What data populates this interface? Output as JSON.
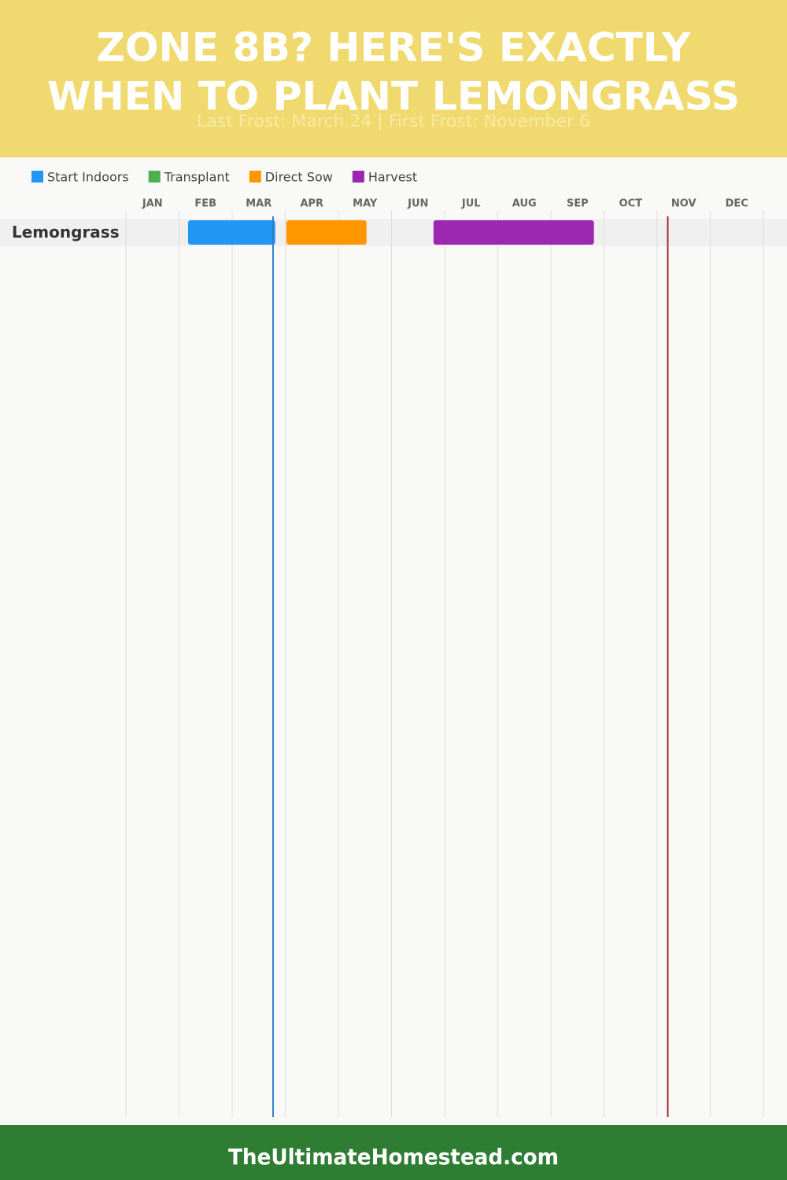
{
  "chart_data": {
    "type": "gantt",
    "title": [
      "ZONE 8B? HERE'S EXACTLY",
      "WHEN TO PLANT LEMONGRASS"
    ],
    "subtitle": "Last Frost: March 24 | First Frost: November 6",
    "categories": [
      "JAN",
      "FEB",
      "MAR",
      "APR",
      "MAY",
      "JUN",
      "JUL",
      "AUG",
      "SEP",
      "OCT",
      "NOV",
      "DEC"
    ],
    "rows": [
      "Lemongrass"
    ],
    "xlim": [
      0,
      12
    ],
    "series": [
      {
        "name": "Start Indoors",
        "color": "#2196f3",
        "start": [
          1.17
        ],
        "end": [
          2.81
        ]
      },
      {
        "name": "Transplant",
        "color": "#4caf50",
        "start": [
          null
        ],
        "end": [
          null
        ]
      },
      {
        "name": "Direct Sow",
        "color": "#ff9800",
        "start": [
          3.02
        ],
        "end": [
          4.53
        ]
      },
      {
        "name": "Harvest",
        "color": "#9c27b0",
        "start": [
          5.79
        ],
        "end": [
          8.81
        ]
      }
    ],
    "markers": [
      {
        "value": 2.77,
        "color": "#2f7fcf"
      },
      {
        "value": 10.2,
        "color": "#a52a2a"
      }
    ],
    "footer": "TheUltimateHomestead.com"
  }
}
